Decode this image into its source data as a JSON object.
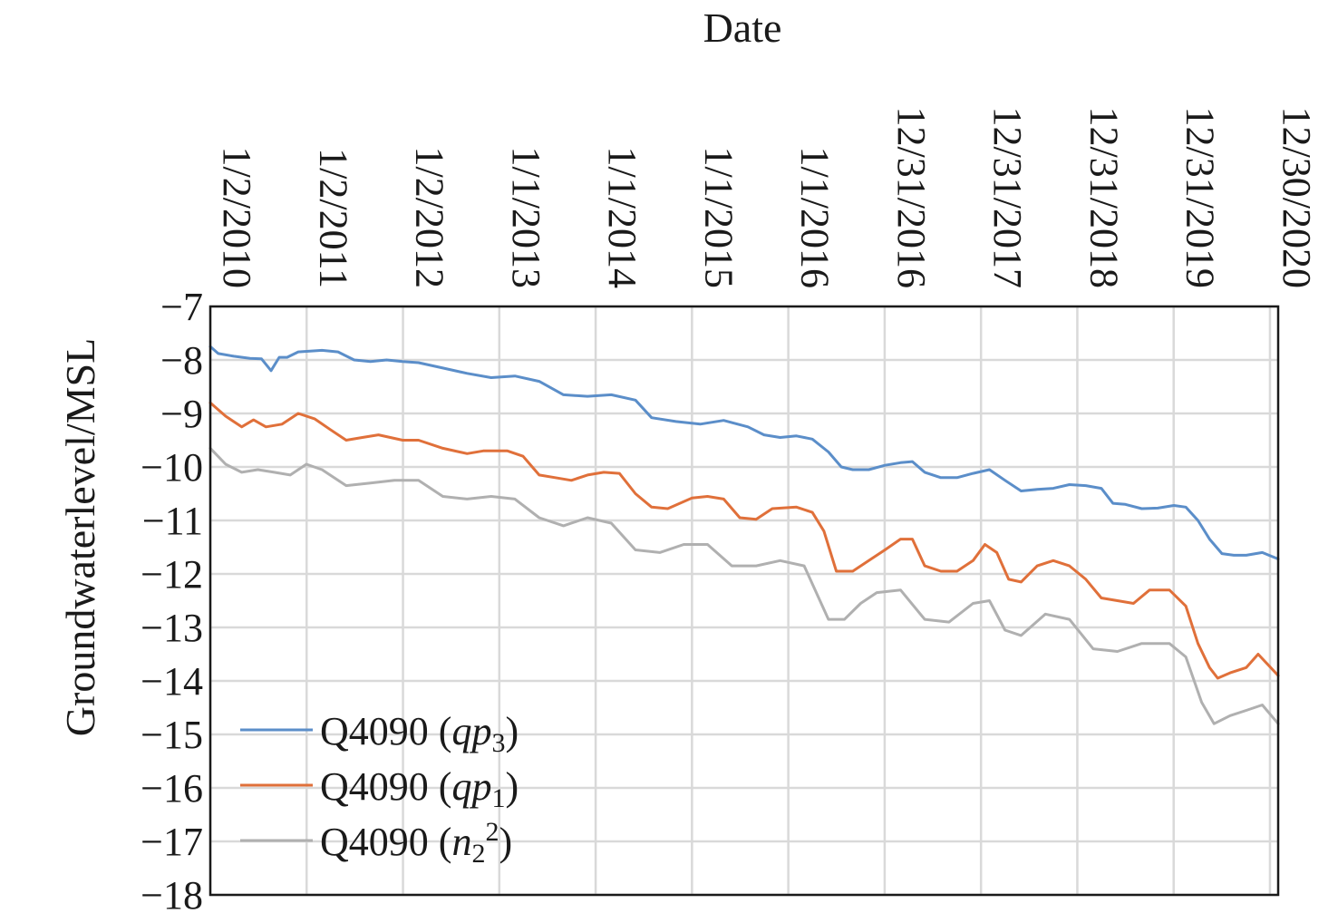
{
  "chart_data": {
    "type": "line",
    "title": "",
    "xlabel": "Date",
    "ylabel": "Groundwaterlevel/MSL",
    "ylim": [
      -18,
      -7
    ],
    "yticks": [
      -7,
      -8,
      -9,
      -10,
      -11,
      -12,
      -13,
      -14,
      -15,
      -16,
      -17,
      -18
    ],
    "ytick_labels": [
      "−7",
      "−8",
      "−9",
      "−10",
      "−11",
      "−12",
      "−13",
      "−14",
      "−15",
      "−16",
      "−17",
      "−18"
    ],
    "xlim": [
      "2010-01-02",
      "2021-01-30"
    ],
    "xticks": [
      "2010-01-02",
      "2011-01-02",
      "2012-01-02",
      "2013-01-01",
      "2014-01-01",
      "2015-01-01",
      "2016-01-01",
      "2016-12-31",
      "2017-12-31",
      "2018-12-31",
      "2019-12-31",
      "2020-12-30"
    ],
    "xtick_labels": [
      "1/2/2010",
      "1/2/2011",
      "1/2/2012",
      "1/1/2013",
      "1/1/2014",
      "1/1/2015",
      "1/1/2016",
      "12/31/2016",
      "12/31/2017",
      "12/31/2018",
      "12/31/2019",
      "12/30/2020"
    ],
    "x_axis_position": "top",
    "grid": true,
    "legend_position": "bottom-left",
    "series": [
      {
        "name": "Q4090 (qp3)",
        "color": "#5b8ec9",
        "points": [
          [
            "2010-01-02",
            -7.75
          ],
          [
            "2010-02-01",
            -7.88
          ],
          [
            "2010-04-01",
            -7.93
          ],
          [
            "2010-06-01",
            -7.97
          ],
          [
            "2010-07-15",
            -7.98
          ],
          [
            "2010-08-20",
            -8.2
          ],
          [
            "2010-09-20",
            -7.95
          ],
          [
            "2010-10-20",
            -7.95
          ],
          [
            "2010-12-01",
            -7.85
          ],
          [
            "2011-03-01",
            -7.82
          ],
          [
            "2011-05-01",
            -7.85
          ],
          [
            "2011-07-01",
            -8.0
          ],
          [
            "2011-09-01",
            -8.03
          ],
          [
            "2011-11-01",
            -8.0
          ],
          [
            "2012-01-01",
            -8.03
          ],
          [
            "2012-03-01",
            -8.05
          ],
          [
            "2012-06-01",
            -8.15
          ],
          [
            "2012-09-01",
            -8.25
          ],
          [
            "2012-12-01",
            -8.33
          ],
          [
            "2013-03-01",
            -8.3
          ],
          [
            "2013-06-01",
            -8.4
          ],
          [
            "2013-09-01",
            -8.65
          ],
          [
            "2013-12-01",
            -8.68
          ],
          [
            "2014-03-01",
            -8.65
          ],
          [
            "2014-06-01",
            -8.75
          ],
          [
            "2014-08-01",
            -9.08
          ],
          [
            "2014-11-01",
            -9.15
          ],
          [
            "2015-02-01",
            -9.2
          ],
          [
            "2015-05-01",
            -9.13
          ],
          [
            "2015-08-01",
            -9.25
          ],
          [
            "2015-10-01",
            -9.4
          ],
          [
            "2015-12-01",
            -9.45
          ],
          [
            "2016-02-01",
            -9.42
          ],
          [
            "2016-04-01",
            -9.48
          ],
          [
            "2016-06-01",
            -9.72
          ],
          [
            "2016-07-20",
            -10.0
          ],
          [
            "2016-09-01",
            -10.05
          ],
          [
            "2016-11-01",
            -10.05
          ],
          [
            "2017-01-01",
            -9.97
          ],
          [
            "2017-03-01",
            -9.92
          ],
          [
            "2017-04-15",
            -9.9
          ],
          [
            "2017-06-01",
            -10.1
          ],
          [
            "2017-08-01",
            -10.2
          ],
          [
            "2017-10-01",
            -10.2
          ],
          [
            "2017-12-01",
            -10.12
          ],
          [
            "2018-02-01",
            -10.05
          ],
          [
            "2018-04-01",
            -10.25
          ],
          [
            "2018-06-01",
            -10.45
          ],
          [
            "2018-08-01",
            -10.42
          ],
          [
            "2018-10-01",
            -10.4
          ],
          [
            "2018-12-01",
            -10.33
          ],
          [
            "2019-02-01",
            -10.35
          ],
          [
            "2019-04-01",
            -10.4
          ],
          [
            "2019-05-15",
            -10.68
          ],
          [
            "2019-07-01",
            -10.7
          ],
          [
            "2019-09-01",
            -10.78
          ],
          [
            "2019-11-01",
            -10.77
          ],
          [
            "2020-01-01",
            -10.72
          ],
          [
            "2020-02-15",
            -10.75
          ],
          [
            "2020-04-01",
            -11.0
          ],
          [
            "2020-05-15",
            -11.35
          ],
          [
            "2020-07-01",
            -11.62
          ],
          [
            "2020-08-15",
            -11.65
          ],
          [
            "2020-10-01",
            -11.65
          ],
          [
            "2020-12-01",
            -11.6
          ],
          [
            "2021-01-30",
            -11.72
          ]
        ]
      },
      {
        "name": "Q4090 (qp1)",
        "color": "#e0703a",
        "points": [
          [
            "2010-01-02",
            -8.8
          ],
          [
            "2010-03-01",
            -9.05
          ],
          [
            "2010-05-01",
            -9.25
          ],
          [
            "2010-06-15",
            -9.12
          ],
          [
            "2010-08-01",
            -9.25
          ],
          [
            "2010-10-01",
            -9.2
          ],
          [
            "2010-12-01",
            -9.0
          ],
          [
            "2011-02-01",
            -9.1
          ],
          [
            "2011-04-01",
            -9.3
          ],
          [
            "2011-06-01",
            -9.5
          ],
          [
            "2011-08-01",
            -9.45
          ],
          [
            "2011-10-01",
            -9.4
          ],
          [
            "2012-01-01",
            -9.5
          ],
          [
            "2012-03-01",
            -9.5
          ],
          [
            "2012-06-01",
            -9.65
          ],
          [
            "2012-09-01",
            -9.75
          ],
          [
            "2012-11-01",
            -9.7
          ],
          [
            "2013-02-01",
            -9.7
          ],
          [
            "2013-04-01",
            -9.8
          ],
          [
            "2013-06-01",
            -10.15
          ],
          [
            "2013-08-01",
            -10.2
          ],
          [
            "2013-10-01",
            -10.25
          ],
          [
            "2013-12-01",
            -10.15
          ],
          [
            "2014-02-01",
            -10.1
          ],
          [
            "2014-04-01",
            -10.12
          ],
          [
            "2014-06-01",
            -10.5
          ],
          [
            "2014-08-01",
            -10.75
          ],
          [
            "2014-10-01",
            -10.78
          ],
          [
            "2015-01-01",
            -10.58
          ],
          [
            "2015-03-01",
            -10.55
          ],
          [
            "2015-05-01",
            -10.6
          ],
          [
            "2015-07-01",
            -10.95
          ],
          [
            "2015-09-01",
            -10.98
          ],
          [
            "2015-11-01",
            -10.78
          ],
          [
            "2016-02-01",
            -10.75
          ],
          [
            "2016-04-01",
            -10.85
          ],
          [
            "2016-05-15",
            -11.2
          ],
          [
            "2016-07-01",
            -11.95
          ],
          [
            "2016-09-01",
            -11.95
          ],
          [
            "2016-11-01",
            -11.75
          ],
          [
            "2017-01-01",
            -11.55
          ],
          [
            "2017-03-01",
            -11.35
          ],
          [
            "2017-04-15",
            -11.35
          ],
          [
            "2017-06-01",
            -11.85
          ],
          [
            "2017-08-01",
            -11.95
          ],
          [
            "2017-10-01",
            -11.95
          ],
          [
            "2017-12-01",
            -11.75
          ],
          [
            "2018-01-15",
            -11.45
          ],
          [
            "2018-03-01",
            -11.6
          ],
          [
            "2018-04-15",
            -12.1
          ],
          [
            "2018-06-01",
            -12.15
          ],
          [
            "2018-08-01",
            -11.85
          ],
          [
            "2018-10-01",
            -11.75
          ],
          [
            "2018-12-01",
            -11.85
          ],
          [
            "2019-02-01",
            -12.1
          ],
          [
            "2019-04-01",
            -12.45
          ],
          [
            "2019-06-01",
            -12.5
          ],
          [
            "2019-08-01",
            -12.55
          ],
          [
            "2019-10-01",
            -12.3
          ],
          [
            "2019-12-15",
            -12.3
          ],
          [
            "2020-02-15",
            -12.6
          ],
          [
            "2020-04-01",
            -13.3
          ],
          [
            "2020-05-15",
            -13.75
          ],
          [
            "2020-06-15",
            -13.95
          ],
          [
            "2020-08-01",
            -13.85
          ],
          [
            "2020-10-01",
            -13.75
          ],
          [
            "2020-11-15",
            -13.5
          ],
          [
            "2021-01-30",
            -13.9
          ]
        ]
      },
      {
        "name": "Q4090 (n22)",
        "color": "#b0b0b0",
        "points": [
          [
            "2010-01-02",
            -9.65
          ],
          [
            "2010-03-01",
            -9.95
          ],
          [
            "2010-05-01",
            -10.1
          ],
          [
            "2010-07-01",
            -10.05
          ],
          [
            "2010-09-01",
            -10.1
          ],
          [
            "2010-11-01",
            -10.15
          ],
          [
            "2011-01-01",
            -9.95
          ],
          [
            "2011-03-01",
            -10.05
          ],
          [
            "2011-06-01",
            -10.35
          ],
          [
            "2011-09-01",
            -10.3
          ],
          [
            "2011-12-01",
            -10.25
          ],
          [
            "2012-03-01",
            -10.25
          ],
          [
            "2012-06-01",
            -10.55
          ],
          [
            "2012-09-01",
            -10.6
          ],
          [
            "2012-12-01",
            -10.55
          ],
          [
            "2013-03-01",
            -10.6
          ],
          [
            "2013-06-01",
            -10.95
          ],
          [
            "2013-09-01",
            -11.1
          ],
          [
            "2013-12-01",
            -10.95
          ],
          [
            "2014-03-01",
            -11.05
          ],
          [
            "2014-06-01",
            -11.55
          ],
          [
            "2014-09-01",
            -11.6
          ],
          [
            "2014-12-01",
            -11.45
          ],
          [
            "2015-03-01",
            -11.45
          ],
          [
            "2015-06-01",
            -11.85
          ],
          [
            "2015-09-01",
            -11.85
          ],
          [
            "2015-12-01",
            -11.75
          ],
          [
            "2016-03-01",
            -11.85
          ],
          [
            "2016-06-01",
            -12.85
          ],
          [
            "2016-08-01",
            -12.85
          ],
          [
            "2016-10-01",
            -12.55
          ],
          [
            "2016-12-01",
            -12.35
          ],
          [
            "2017-03-01",
            -12.3
          ],
          [
            "2017-06-01",
            -12.85
          ],
          [
            "2017-09-01",
            -12.9
          ],
          [
            "2017-12-01",
            -12.55
          ],
          [
            "2018-02-01",
            -12.5
          ],
          [
            "2018-04-01",
            -13.05
          ],
          [
            "2018-06-01",
            -13.15
          ],
          [
            "2018-09-01",
            -12.75
          ],
          [
            "2018-12-01",
            -12.85
          ],
          [
            "2019-03-01",
            -13.4
          ],
          [
            "2019-06-01",
            -13.45
          ],
          [
            "2019-09-01",
            -13.3
          ],
          [
            "2019-12-15",
            -13.3
          ],
          [
            "2020-02-15",
            -13.55
          ],
          [
            "2020-04-15",
            -14.4
          ],
          [
            "2020-06-01",
            -14.8
          ],
          [
            "2020-08-01",
            -14.65
          ],
          [
            "2020-10-01",
            -14.55
          ],
          [
            "2020-12-01",
            -14.45
          ],
          [
            "2021-01-30",
            -14.8
          ]
        ]
      }
    ]
  },
  "legend": {
    "items": [
      {
        "prefix": "Q4090 (",
        "var": "qp",
        "sub": "3",
        "sup": "",
        "suffix": ")",
        "color": "#5b8ec9"
      },
      {
        "prefix": "Q4090 (",
        "var": "qp",
        "sub": "1",
        "sup": "",
        "suffix": ")",
        "color": "#e0703a"
      },
      {
        "prefix": "Q4090 (",
        "var": "n",
        "sub": "2",
        "sup": "2",
        "suffix": ")",
        "color": "#b0b0b0"
      }
    ]
  }
}
